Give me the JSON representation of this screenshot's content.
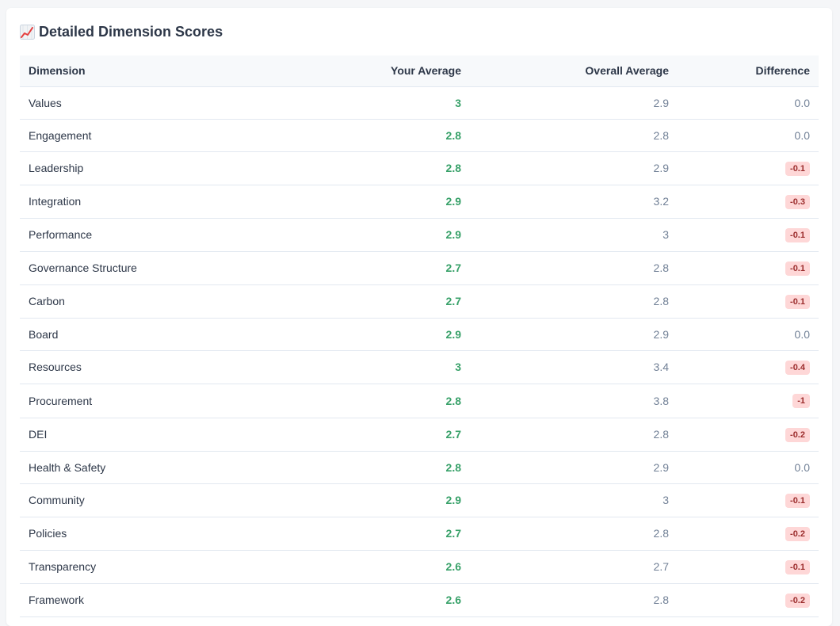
{
  "section": {
    "icon": "chart-increasing-icon",
    "title": "Detailed Dimension Scores"
  },
  "colors": {
    "positive": "#38a169",
    "neutral": "#718096",
    "negative_bg": "#fed7d7",
    "negative_text": "#9b2c2c"
  },
  "table": {
    "headers": {
      "dimension": "Dimension",
      "your_average": "Your Average",
      "overall_average": "Overall Average",
      "difference": "Difference"
    },
    "rows": [
      {
        "dimension": "Values",
        "your": "3",
        "overall": "2.9",
        "diff": "0.0",
        "negative": false
      },
      {
        "dimension": "Engagement",
        "your": "2.8",
        "overall": "2.8",
        "diff": "0.0",
        "negative": false
      },
      {
        "dimension": "Leadership",
        "your": "2.8",
        "overall": "2.9",
        "diff": "-0.1",
        "negative": true
      },
      {
        "dimension": "Integration",
        "your": "2.9",
        "overall": "3.2",
        "diff": "-0.3",
        "negative": true
      },
      {
        "dimension": "Performance",
        "your": "2.9",
        "overall": "3",
        "diff": "-0.1",
        "negative": true
      },
      {
        "dimension": "Governance Structure",
        "your": "2.7",
        "overall": "2.8",
        "diff": "-0.1",
        "negative": true
      },
      {
        "dimension": "Carbon",
        "your": "2.7",
        "overall": "2.8",
        "diff": "-0.1",
        "negative": true
      },
      {
        "dimension": "Board",
        "your": "2.9",
        "overall": "2.9",
        "diff": "0.0",
        "negative": false
      },
      {
        "dimension": "Resources",
        "your": "3",
        "overall": "3.4",
        "diff": "-0.4",
        "negative": true
      },
      {
        "dimension": "Procurement",
        "your": "2.8",
        "overall": "3.8",
        "diff": "-1",
        "negative": true
      },
      {
        "dimension": "DEI",
        "your": "2.7",
        "overall": "2.8",
        "diff": "-0.2",
        "negative": true
      },
      {
        "dimension": "Health & Safety",
        "your": "2.8",
        "overall": "2.9",
        "diff": "0.0",
        "negative": false
      },
      {
        "dimension": "Community",
        "your": "2.9",
        "overall": "3",
        "diff": "-0.1",
        "negative": true
      },
      {
        "dimension": "Policies",
        "your": "2.7",
        "overall": "2.8",
        "diff": "-0.2",
        "negative": true
      },
      {
        "dimension": "Transparency",
        "your": "2.6",
        "overall": "2.7",
        "diff": "-0.1",
        "negative": true
      },
      {
        "dimension": "Framework",
        "your": "2.6",
        "overall": "2.8",
        "diff": "-0.2",
        "negative": true
      }
    ]
  }
}
